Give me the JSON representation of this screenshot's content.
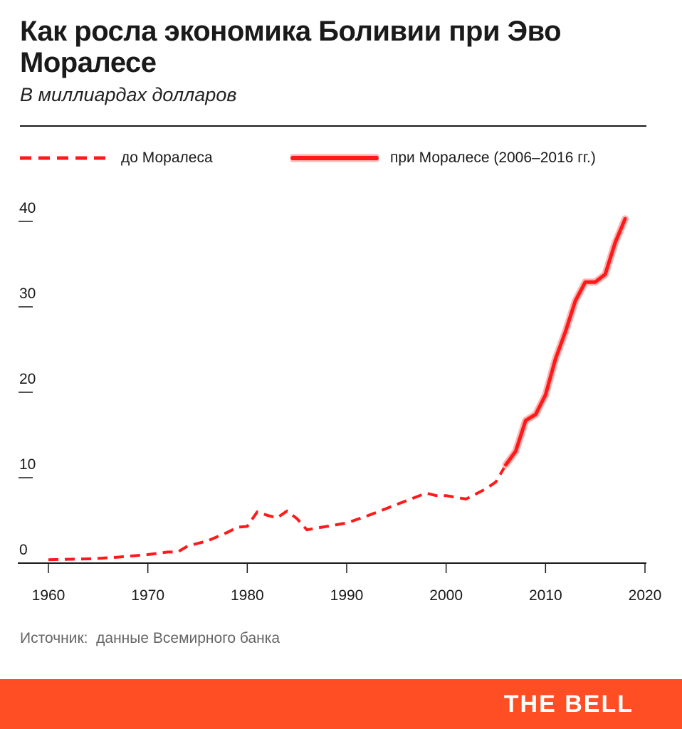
{
  "header": {
    "title": "Как росла экономика Боливии при Эво Моралесе",
    "subtitle": "В миллиардах долларов"
  },
  "footer": {
    "source": "Источник:  данные Всемирного банка",
    "brand": "THE BELL"
  },
  "colors": {
    "accent": "#ff1a1a",
    "footer_bg": "#ff4d24"
  },
  "chart_data": {
    "type": "line",
    "x_ticks": [
      1960,
      1970,
      1980,
      1990,
      2000,
      2010,
      2020
    ],
    "y_ticks": [
      0,
      10,
      20,
      30,
      40
    ],
    "xlim": [
      1960,
      2020
    ],
    "ylim": [
      0,
      40
    ],
    "legend_placement": "top",
    "grid": false,
    "series": [
      {
        "name": "до Моралеса",
        "style": "dashed",
        "color": "#ff1a1a",
        "points": [
          [
            1960,
            0.4
          ],
          [
            1962,
            0.45
          ],
          [
            1964,
            0.5
          ],
          [
            1965,
            0.55
          ],
          [
            1967,
            0.7
          ],
          [
            1970,
            1.0
          ],
          [
            1972,
            1.3
          ],
          [
            1973,
            1.3
          ],
          [
            1974,
            2.0
          ],
          [
            1976,
            2.6
          ],
          [
            1978,
            3.6
          ],
          [
            1979,
            4.2
          ],
          [
            1980,
            4.3
          ],
          [
            1981,
            6.0
          ],
          [
            1982,
            5.6
          ],
          [
            1983,
            5.3
          ],
          [
            1984,
            6.1
          ],
          [
            1985,
            5.2
          ],
          [
            1986,
            3.9
          ],
          [
            1988,
            4.3
          ],
          [
            1990,
            4.7
          ],
          [
            1992,
            5.5
          ],
          [
            1994,
            6.4
          ],
          [
            1996,
            7.3
          ],
          [
            1998,
            8.2
          ],
          [
            1999,
            7.9
          ],
          [
            2000,
            7.9
          ],
          [
            2001,
            7.7
          ],
          [
            2002,
            7.5
          ],
          [
            2003,
            8.1
          ],
          [
            2004,
            8.7
          ],
          [
            2005,
            9.5
          ],
          [
            2006,
            11.5
          ]
        ]
      },
      {
        "name": "при Моралесе (2006–2016 гг.)",
        "style": "solid",
        "color": "#ff1a1a",
        "points": [
          [
            2006,
            11.5
          ],
          [
            2007,
            13.1
          ],
          [
            2008,
            16.7
          ],
          [
            2009,
            17.4
          ],
          [
            2010,
            19.7
          ],
          [
            2011,
            23.9
          ],
          [
            2012,
            27.1
          ],
          [
            2013,
            30.7
          ],
          [
            2014,
            32.9
          ],
          [
            2015,
            32.9
          ],
          [
            2016,
            33.8
          ],
          [
            2017,
            37.5
          ],
          [
            2018,
            40.3
          ]
        ]
      }
    ]
  }
}
